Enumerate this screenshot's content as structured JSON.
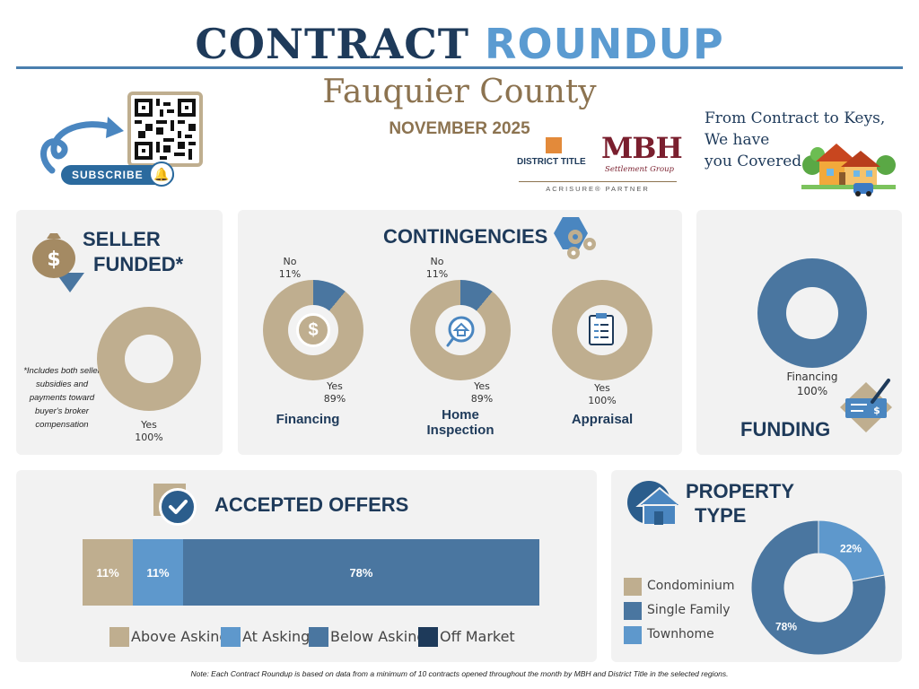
{
  "header": {
    "title_part1": "CONTRACT ",
    "title_part2": "ROUNDUP",
    "county": "Fauquier County",
    "month": "NOVEMBER 2025",
    "tagline_line1": "From Contract to Keys,",
    "tagline_line2": "We have",
    "tagline_line3": "you Covered",
    "subscribe_label": "SUBSCRIBE",
    "logo_district": "DISTRICT TITLE",
    "logo_mbh": "MBH",
    "logo_mbh_sub": "Settlement Group",
    "logo_partner": "ACRISURE® PARTNER"
  },
  "seller_funded": {
    "title_line1": "SELLER",
    "title_line2": "FUNDED*",
    "note": "*Includes both seller subsidies and payments toward buyer's broker compensation",
    "yes_label": "Yes",
    "yes_pct": "100%",
    "yes_value": 100,
    "color": "#bfae8f"
  },
  "contingencies": {
    "title": "CONTINGENCIES",
    "items": [
      {
        "name": "Financing",
        "yes_label": "Yes",
        "yes_pct": "89%",
        "no_label": "No",
        "no_pct": "11%",
        "yes": 89,
        "no": 11
      },
      {
        "name": "Home Inspection",
        "name_line1": "Home",
        "name_line2": "Inspection",
        "yes_label": "Yes",
        "yes_pct": "89%",
        "no_label": "No",
        "no_pct": "11%",
        "yes": 89,
        "no": 11
      },
      {
        "name": "Appraisal",
        "yes_label": "Yes",
        "yes_pct": "100%",
        "yes": 100,
        "no": 0
      }
    ],
    "yes_color": "#bfae8f",
    "no_color": "#4a76a0"
  },
  "funding": {
    "title": "FUNDING",
    "label": "Financing",
    "pct": "100%",
    "value": 100,
    "color": "#4a76a0"
  },
  "accepted_offers": {
    "title": "ACCEPTED OFFERS",
    "segments": [
      {
        "name": "Above Asking",
        "value": 11,
        "label": "11%",
        "color": "#bfae8f"
      },
      {
        "name": "At Asking",
        "value": 11,
        "label": "11%",
        "color": "#5e98cc"
      },
      {
        "name": "Below Asking",
        "value": 78,
        "label": "78%",
        "color": "#4a76a0"
      },
      {
        "name": "Off Market",
        "value": 0,
        "label": "",
        "color": "#1e3a5a"
      }
    ]
  },
  "property_type": {
    "title_line1": "PROPERTY",
    "title_line2": "TYPE",
    "legend": [
      {
        "name": "Condominium",
        "color": "#bfae8f"
      },
      {
        "name": "Single Family",
        "color": "#4a76a0"
      },
      {
        "name": "Townhome",
        "color": "#5e98cc"
      }
    ],
    "slices": [
      {
        "name": "Townhome",
        "value": 22,
        "label": "22%",
        "color": "#5e98cc"
      },
      {
        "name": "Single Family",
        "value": 78,
        "label": "78%",
        "color": "#4a76a0"
      }
    ]
  },
  "footer_note": "Note: Each Contract Roundup is based on data from a minimum of 10 contracts opened throughout the month by MBH and District Title in the selected regions."
}
